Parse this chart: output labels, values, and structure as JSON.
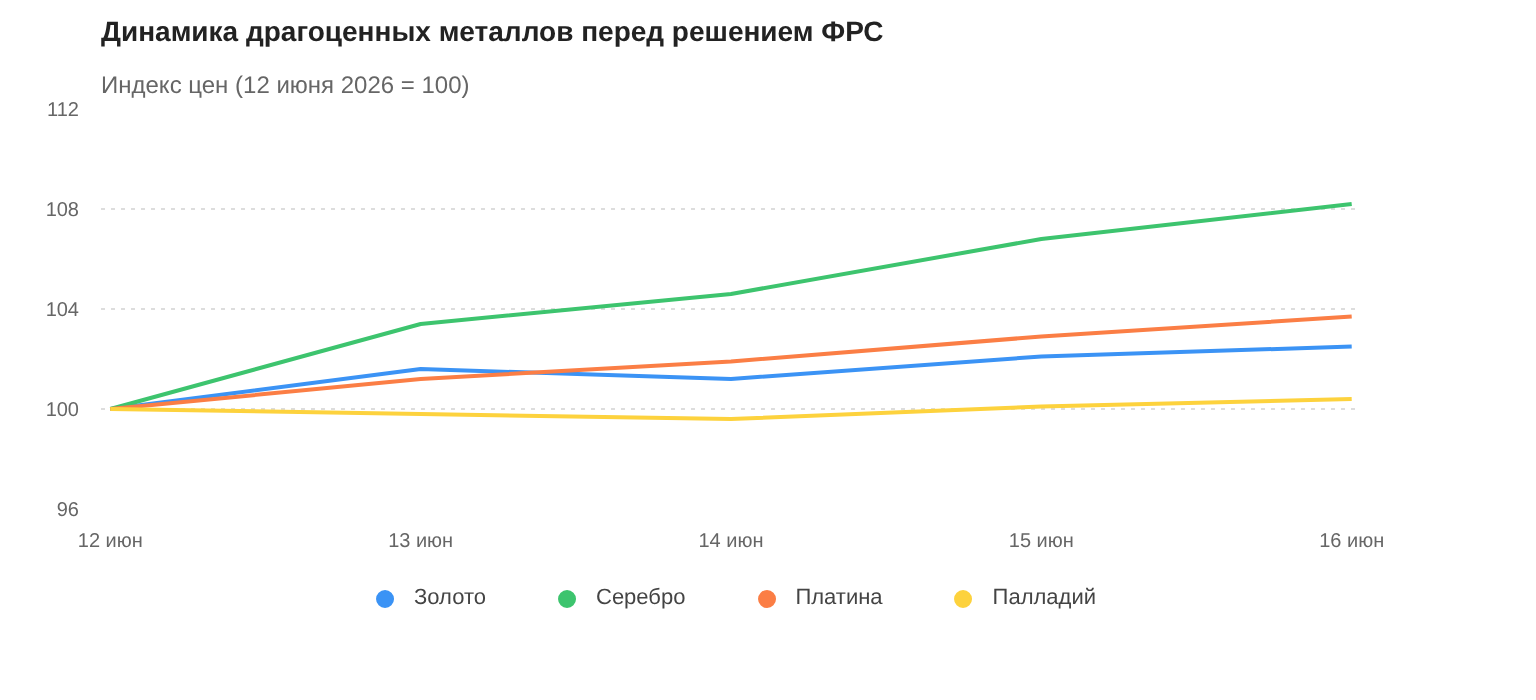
{
  "chart_data": {
    "type": "line",
    "title": "Динамика драгоценных металлов перед решением ФРС",
    "subtitle": "Индекс цен (12 июня 2026 = 100)",
    "categories": [
      "12 июн",
      "13 июн",
      "14 июн",
      "15 июн",
      "16 июн"
    ],
    "series": [
      {
        "name": "Золото",
        "color": "#3b93f5",
        "values": [
          100,
          101.6,
          101.2,
          102.1,
          102.5
        ]
      },
      {
        "name": "Серебро",
        "color": "#3dc46e",
        "values": [
          100,
          103.4,
          104.6,
          106.8,
          108.2
        ]
      },
      {
        "name": "Платина",
        "color": "#fb7e45",
        "values": [
          100,
          101.2,
          101.9,
          102.9,
          103.7
        ]
      },
      {
        "name": "Палладий",
        "color": "#fdd23d",
        "values": [
          100,
          99.8,
          99.6,
          100.1,
          100.4
        ]
      }
    ],
    "ylim": [
      96,
      112
    ],
    "yticks": [
      96,
      100,
      104,
      108,
      112
    ],
    "grid": "y",
    "legend": "bottom"
  }
}
